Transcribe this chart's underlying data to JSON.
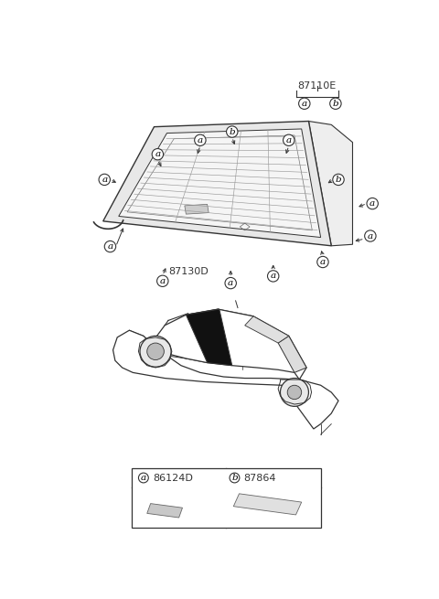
{
  "background_color": "#ffffff",
  "part_label_87110E": "87110E",
  "part_label_87130D": "87130D",
  "legend_a_code": "86124D",
  "legend_b_code": "87864",
  "line_color": "#333333",
  "glass_fill": "#f0f0f0",
  "mould_fill": "#e8e8e8",
  "car_window_fill": "#111111",
  "legend_box_color": "#333333",
  "defroster_color": "#888888",
  "label_a": "a",
  "label_b": "b"
}
